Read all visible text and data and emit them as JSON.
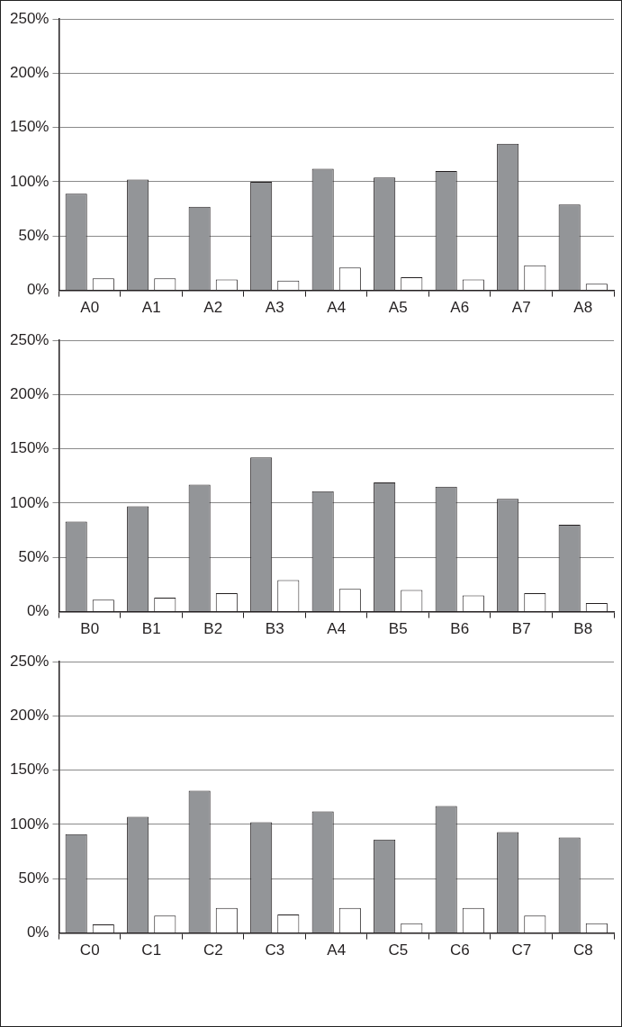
{
  "chart_data": [
    {
      "type": "bar",
      "categories": [
        "A0",
        "A1",
        "A2",
        "A3",
        "A4",
        "A5",
        "A6",
        "A7",
        "A8"
      ],
      "series": [
        {
          "color": "#939598",
          "values": [
            89,
            102,
            77,
            100,
            112,
            104,
            110,
            135,
            79
          ]
        },
        {
          "color": "#ffffff",
          "values": [
            11,
            11,
            10,
            9,
            21,
            12,
            10,
            23,
            6
          ]
        }
      ],
      "ylim": [
        0,
        250
      ],
      "yticks": [
        {
          "value": 0,
          "label": "0%"
        },
        {
          "value": 50,
          "label": "50%"
        },
        {
          "value": 100,
          "label": "100%"
        },
        {
          "value": 150,
          "label": "150%"
        },
        {
          "value": 200,
          "label": "200%"
        },
        {
          "value": 250,
          "label": "250%"
        }
      ],
      "grid": "y",
      "legend": false
    },
    {
      "type": "bar",
      "categories": [
        "B0",
        "B1",
        "B2",
        "B3",
        "A4",
        "B5",
        "B6",
        "B7",
        "B8"
      ],
      "series": [
        {
          "color": "#939598",
          "values": [
            83,
            97,
            117,
            142,
            111,
            119,
            115,
            104,
            80
          ]
        },
        {
          "color": "#ffffff",
          "values": [
            11,
            13,
            17,
            29,
            21,
            20,
            15,
            17,
            8
          ]
        }
      ],
      "ylim": [
        0,
        250
      ],
      "yticks": [
        {
          "value": 0,
          "label": "0%"
        },
        {
          "value": 50,
          "label": "50%"
        },
        {
          "value": 100,
          "label": "100%"
        },
        {
          "value": 150,
          "label": "150%"
        },
        {
          "value": 200,
          "label": "200%"
        },
        {
          "value": 250,
          "label": "250%"
        }
      ],
      "grid": "y",
      "legend": false
    },
    {
      "type": "bar",
      "categories": [
        "C0",
        "C1",
        "C2",
        "C3",
        "A4",
        "C5",
        "C6",
        "C7",
        "C8"
      ],
      "series": [
        {
          "color": "#939598",
          "values": [
            91,
            107,
            131,
            102,
            112,
            86,
            117,
            93,
            88
          ]
        },
        {
          "color": "#ffffff",
          "values": [
            8,
            16,
            23,
            17,
            23,
            9,
            23,
            16,
            9
          ]
        }
      ],
      "ylim": [
        0,
        250
      ],
      "yticks": [
        {
          "value": 0,
          "label": "0%"
        },
        {
          "value": 50,
          "label": "50%"
        },
        {
          "value": 100,
          "label": "100%"
        },
        {
          "value": 150,
          "label": "150%"
        },
        {
          "value": 200,
          "label": "200%"
        },
        {
          "value": 250,
          "label": "250%"
        }
      ],
      "grid": "y",
      "legend": false
    }
  ]
}
